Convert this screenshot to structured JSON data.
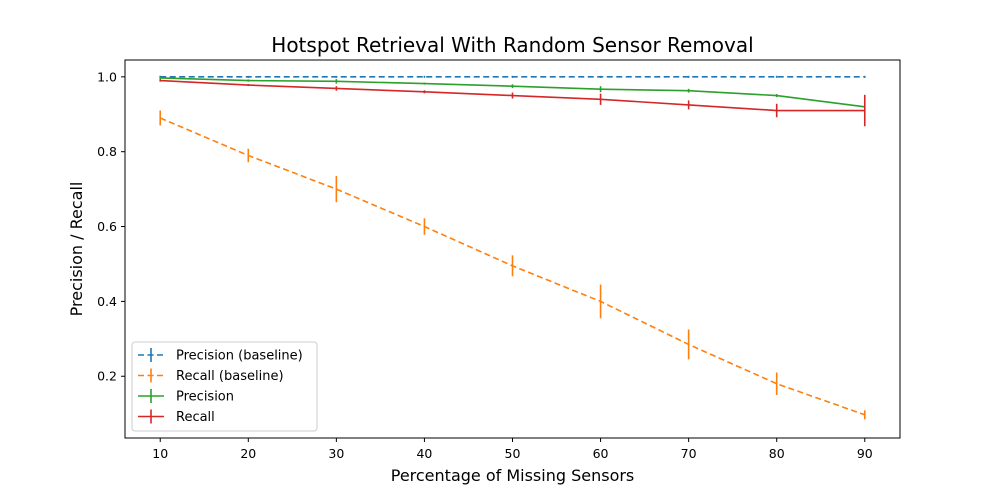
{
  "chart_data": {
    "type": "line",
    "title": "Hotspot Retrieval With Random Sensor Removal",
    "xlabel": "Percentage of Missing Sensors",
    "ylabel": "Precision / Recall",
    "x": [
      10,
      20,
      30,
      40,
      50,
      60,
      70,
      80,
      90
    ],
    "xlim": [
      6,
      94
    ],
    "ylim": [
      0.035,
      1.045
    ],
    "xticks": [
      10,
      20,
      30,
      40,
      50,
      60,
      70,
      80,
      90
    ],
    "yticks": [
      0.2,
      0.4,
      0.6,
      0.8,
      1.0
    ],
    "ytick_labels": [
      "0.2",
      "0.4",
      "0.6",
      "0.8",
      "1.0"
    ],
    "grid": false,
    "legend_position": "lower-left",
    "series": [
      {
        "name": "Precision (baseline)",
        "color": "#1f77b4",
        "dashed": true,
        "values": [
          1.0,
          1.0,
          1.0,
          1.0,
          1.0,
          1.0,
          1.0,
          1.0,
          1.0
        ],
        "errors": [
          0.003,
          0.0,
          0.0,
          0.0,
          0.0,
          0.0,
          0.0,
          0.0,
          0.0
        ]
      },
      {
        "name": "Recall (baseline)",
        "color": "#ff7f0e",
        "dashed": true,
        "values": [
          0.89,
          0.79,
          0.7,
          0.6,
          0.495,
          0.4,
          0.285,
          0.18,
          0.097
        ],
        "errors": [
          0.02,
          0.018,
          0.035,
          0.022,
          0.028,
          0.045,
          0.04,
          0.03,
          0.012
        ]
      },
      {
        "name": "Precision",
        "color": "#2ca02c",
        "dashed": false,
        "values": [
          0.997,
          0.99,
          0.988,
          0.982,
          0.975,
          0.967,
          0.963,
          0.95,
          0.92
        ],
        "errors": [
          0.004,
          0.003,
          0.006,
          0.002,
          0.005,
          0.008,
          0.005,
          0.004,
          0.002
        ]
      },
      {
        "name": "Recall",
        "color": "#d62728",
        "dashed": false,
        "values": [
          0.99,
          0.978,
          0.969,
          0.96,
          0.95,
          0.94,
          0.925,
          0.91,
          0.91
        ],
        "errors": [
          0.003,
          0.002,
          0.006,
          0.004,
          0.008,
          0.015,
          0.012,
          0.018,
          0.042
        ]
      }
    ]
  }
}
